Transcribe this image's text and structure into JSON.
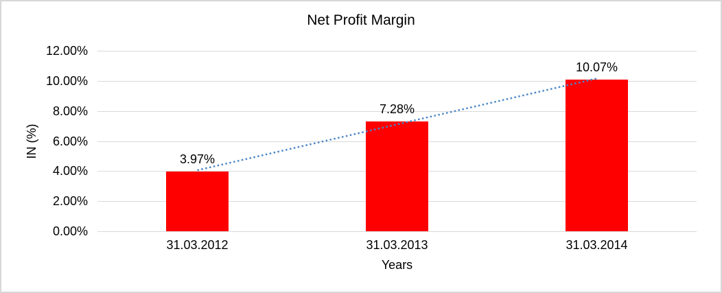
{
  "chart_data": {
    "type": "bar",
    "title": "Net Profit Margin",
    "xlabel": "Years",
    "ylabel": "IN (%)",
    "categories": [
      "31.03.2012",
      "31.03.2013",
      "31.03.2014"
    ],
    "values": [
      3.97,
      7.28,
      10.07
    ],
    "data_labels": [
      "3.97%",
      "7.28%",
      "10.07%"
    ],
    "ylim": [
      0,
      12
    ],
    "yticks": [
      {
        "value": 0,
        "label": "0.00%"
      },
      {
        "value": 2,
        "label": "2.00%"
      },
      {
        "value": 4,
        "label": "4.00%"
      },
      {
        "value": 6,
        "label": "6.00%"
      },
      {
        "value": 8,
        "label": "8.00%"
      },
      {
        "value": 10,
        "label": "10.00%"
      },
      {
        "value": 12,
        "label": "12.00%"
      }
    ],
    "grid": true,
    "legend": "none",
    "trendline": {
      "type": "linear",
      "style": "dotted",
      "color": "#4a86c8"
    },
    "colors": {
      "bar": "#ff0000",
      "gridline": "#d9d9d9",
      "frame_border": "#d7d7d7",
      "text": "#000000"
    }
  }
}
